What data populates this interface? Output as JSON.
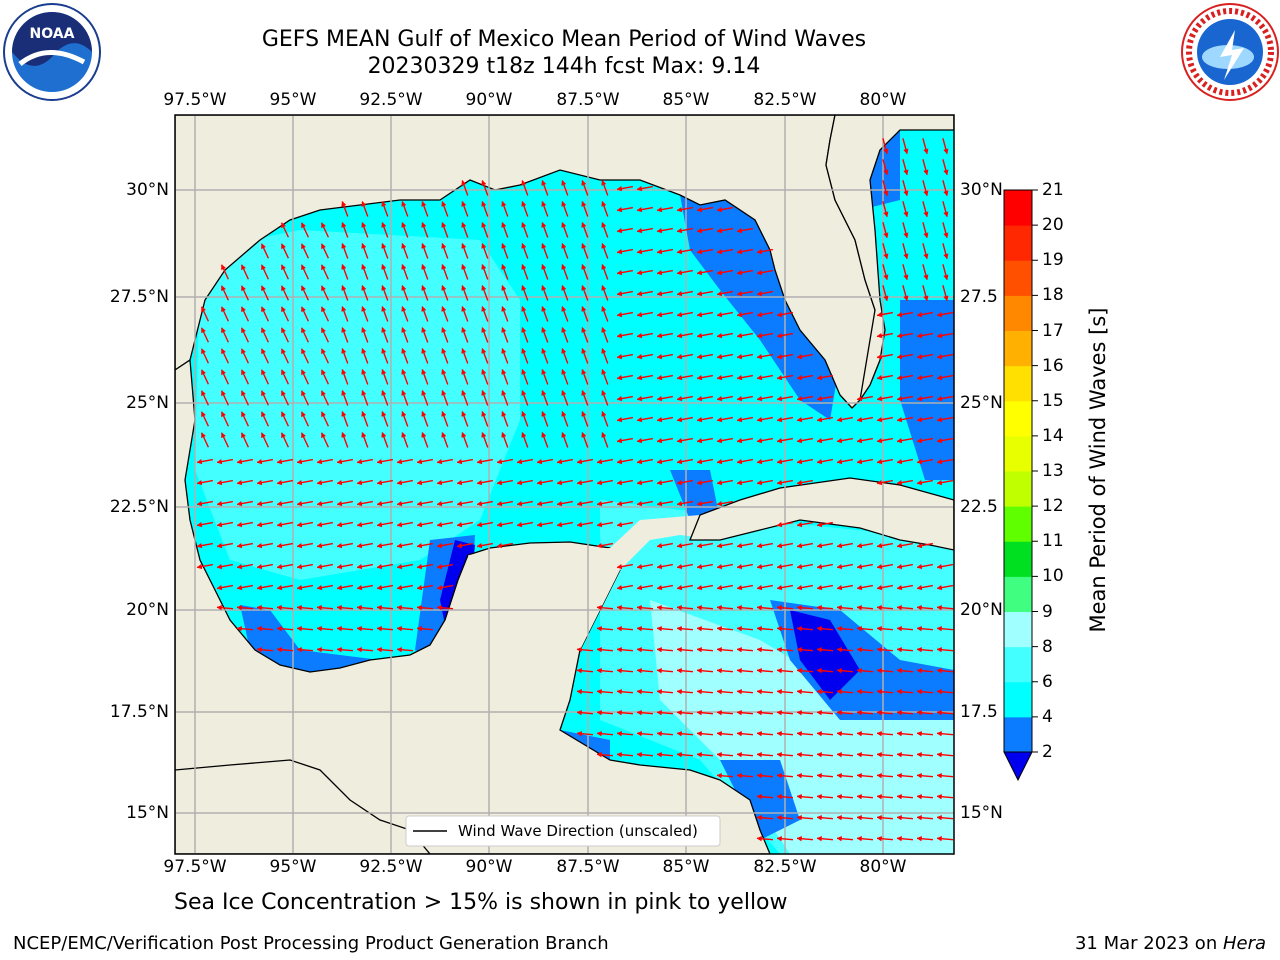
{
  "header": {
    "title_line1": "GEFS MEAN Gulf of Mexico Mean Period of Wind Waves",
    "title_line2": "20230329 t18z 144h fcst   Max: 9.14"
  },
  "logos": {
    "left_icon": "noaa-logo-icon",
    "right_icon": "nws-logo-icon"
  },
  "axes": {
    "lon_ticks": [
      "97.5°W",
      "95°W",
      "92.5°W",
      "90°W",
      "87.5°W",
      "85°W",
      "82.5°W",
      "80°W"
    ],
    "lat_ticks": [
      "30°N",
      "27.5°N",
      "25°N",
      "22.5°N",
      "20°N",
      "17.5°N",
      "15°N"
    ],
    "lat_ticks_right": [
      "30°N",
      "27.5",
      "25°N",
      "22.5",
      "20°N",
      "17.5",
      "15°N"
    ]
  },
  "legend": {
    "line_label": "Wind Wave Direction (unscaled)"
  },
  "colorbar": {
    "title": "Mean Period of Wind Waves [s]",
    "ticks": [
      "2",
      "4",
      "6",
      "8",
      "9",
      "10",
      "11",
      "12",
      "13",
      "14",
      "15",
      "16",
      "17",
      "18",
      "19",
      "20",
      "21"
    ],
    "colors": [
      "#0b7bff",
      "#00ffff",
      "#44ffff",
      "#a0ffff",
      "#40ff80",
      "#00e020",
      "#60ff00",
      "#c0ff00",
      "#e8ff00",
      "#ffff00",
      "#ffe000",
      "#ffb000",
      "#ff8800",
      "#ff5000",
      "#ff2800",
      "#ff0000"
    ],
    "min_arrow_color": "#0000ee"
  },
  "map_colors": {
    "land": "#efedde",
    "grid": "#b0b0b0",
    "arrow": "#ff0000"
  },
  "note": "Sea Ice Concentration > 15% is shown in pink to yellow",
  "footer": {
    "left": "NCEP/EMC/Verification Post Processing Product Generation Branch",
    "date": "31 Mar 2023 on ",
    "machine": "Hera"
  }
}
